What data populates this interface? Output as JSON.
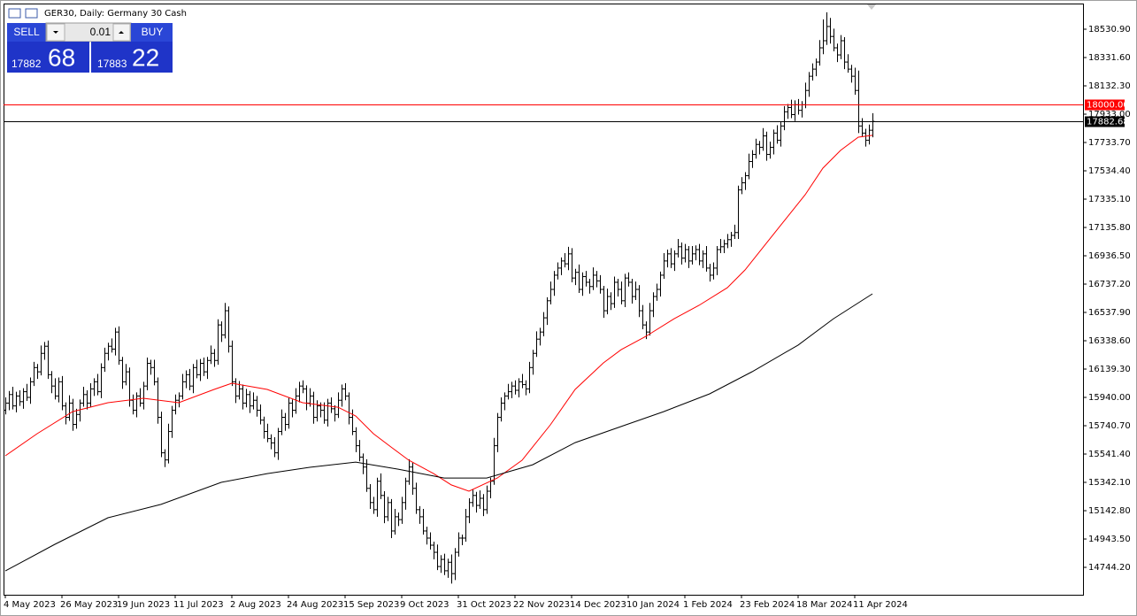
{
  "chart_data": {
    "type": "ohlc",
    "title": "GER30, Daily:  Germany 30 Cash",
    "color": "#000000",
    "xlim": [
      -0.5,
      304.5
    ],
    "ylim": [
      14563.7,
      18705.3
    ],
    "xticks": [
      {
        "value": 0,
        "label": "4 May 2023"
      },
      {
        "value": 16,
        "label": "26 May 2023"
      },
      {
        "value": 32,
        "label": "19 Jun 2023"
      },
      {
        "value": 48,
        "label": "11 Jul 2023"
      },
      {
        "value": 64,
        "label": "2 Aug 2023"
      },
      {
        "value": 80,
        "label": "24 Aug 2023"
      },
      {
        "value": 96,
        "label": "15 Sep 2023"
      },
      {
        "value": 112,
        "label": "9 Oct 2023"
      },
      {
        "value": 128,
        "label": "31 Oct 2023"
      },
      {
        "value": 144,
        "label": "22 Nov 2023"
      },
      {
        "value": 160,
        "label": "14 Dec 2023"
      },
      {
        "value": 176,
        "label": "10 Jan 2024"
      },
      {
        "value": 192,
        "label": "1 Feb 2024"
      },
      {
        "value": 208,
        "label": "23 Feb 2024"
      },
      {
        "value": 224,
        "label": "18 Mar 2024"
      },
      {
        "value": 240,
        "label": "11 Apr 2024"
      }
    ],
    "yticks": [
      {
        "value": 18530.9,
        "label": "18530.90"
      },
      {
        "value": 18331.6,
        "label": "18331.60"
      },
      {
        "value": 18132.3,
        "label": "18132.30"
      },
      {
        "value": 17933,
        "label": "17933.00"
      },
      {
        "value": 17733.7,
        "label": "17733.70"
      },
      {
        "value": 17534.4,
        "label": "17534.40"
      },
      {
        "value": 17335.1,
        "label": "17335.10"
      },
      {
        "value": 17135.8,
        "label": "17135.80"
      },
      {
        "value": 16936.5,
        "label": "16936.50"
      },
      {
        "value": 16737.2,
        "label": "16737.20"
      },
      {
        "value": 16537.9,
        "label": "16537.90"
      },
      {
        "value": 16338.6,
        "label": "16338.60"
      },
      {
        "value": 16139.3,
        "label": "16139.30"
      },
      {
        "value": 15940,
        "label": "15940.00"
      },
      {
        "value": 15740.7,
        "label": "15740.70"
      },
      {
        "value": 15541.4,
        "label": "15541.40"
      },
      {
        "value": 15342.1,
        "label": "15342.10"
      },
      {
        "value": 15142.8,
        "label": "15142.80"
      },
      {
        "value": 14943.5,
        "label": "14943.50"
      },
      {
        "value": 14744.2,
        "label": "14744.20"
      }
    ],
    "open": [
      15850,
      15900,
      15960,
      15880,
      15950,
      15910,
      15980,
      15940,
      16050,
      16150,
      16120,
      16250,
      16300,
      16100,
      16020,
      15950,
      16050,
      15880,
      15800,
      15900,
      15750,
      15820,
      15900,
      15960,
      15900,
      16000,
      16050,
      15980,
      16150,
      16250,
      16300,
      16280,
      16400,
      16200,
      16050,
      16120,
      15920,
      15850,
      15950,
      15900,
      16020,
      16180,
      16150,
      16050,
      15800,
      15550,
      15500,
      15700,
      15850,
      15920,
      15950,
      16050,
      16100,
      16020,
      16150,
      16100,
      16180,
      16120,
      16200,
      16250,
      16200,
      16450,
      16380,
      16550,
      16300,
      16050,
      15950,
      16000,
      15900,
      15960,
      15880,
      15920,
      15850,
      15780,
      15700,
      15650,
      15620,
      15550,
      15700,
      15800,
      15750,
      15900,
      15850,
      15950,
      16020,
      16000,
      15900,
      15950,
      15800,
      15880,
      15850,
      15780,
      15900,
      15860,
      15820,
      15920,
      16000,
      15950,
      15800,
      15700,
      15600,
      15520,
      15450,
      15300,
      15200,
      15150,
      15350,
      15250,
      15100,
      15200,
      15000,
      15100,
      15080,
      15200,
      15350,
      15450,
      15300,
      15150,
      15100,
      15000,
      14950,
      14900,
      14850,
      14750,
      14800,
      14720,
      14780,
      14700,
      14850,
      14950,
      14950,
      15100,
      15200,
      15250,
      15180,
      15230,
      15150,
      15280,
      15350,
      15600,
      15800,
      15900,
      15950,
      15980,
      16020,
      15990,
      16050,
      16030,
      16000,
      16150,
      16250,
      16350,
      16400,
      16500,
      16620,
      16700,
      16800,
      16850,
      16900,
      16880,
      16950,
      16780,
      16820,
      16700,
      16790,
      16750,
      16720,
      16800,
      16760,
      16700,
      16550,
      16650,
      16600,
      16750,
      16700,
      16620,
      16780,
      16750,
      16650,
      16700,
      16550,
      16450,
      16400,
      16550,
      16650,
      16700,
      16800,
      16900,
      16950,
      16880,
      16950,
      17000,
      16920,
      16980,
      16900,
      16950,
      16980,
      16900,
      16950,
      16850,
      16800,
      16850,
      16980,
      17000,
      17020,
      17050,
      17080,
      17100,
      17400,
      17450,
      17500,
      17600,
      17650,
      17720,
      17700,
      17780,
      17650,
      17700,
      17800,
      17750,
      17850,
      17950,
      17980,
      17930,
      18000,
      17960,
      18000,
      18100,
      18200,
      18250,
      18300,
      18400,
      18450,
      18550,
      18480,
      18400,
      18350,
      18450,
      18300,
      18250,
      18200,
      18100,
      17850,
      17800,
      17750,
      17820
    ],
    "high": [
      15940,
      15985,
      16015,
      15980,
      15990,
      16005,
      16035,
      16080,
      16190,
      16175,
      16305,
      16330,
      16340,
      16125,
      16075,
      16080,
      16090,
      15905,
      15955,
      15930,
      15860,
      15925,
      16015,
      15990,
      16040,
      16075,
      16105,
      16180,
      16290,
      16325,
      16355,
      16430,
      16440,
      16225,
      16175,
      16150,
      15960,
      15975,
      16005,
      16050,
      16220,
      16205,
      16205,
      16080,
      15840,
      15575,
      15755,
      15880,
      15960,
      15975,
      16105,
      16130,
      16140,
      16175,
      16205,
      16210,
      16220,
      16225,
      16305,
      16280,
      16490,
      16475,
      16605,
      16580,
      16340,
      16075,
      16055,
      16030,
      16000,
      15985,
      15975,
      15950,
      15890,
      15805,
      15755,
      15680,
      15660,
      15725,
      15855,
      15830,
      15940,
      15925,
      16005,
      16050,
      16060,
      16025,
      16005,
      15980,
      15920,
      15905,
      15905,
      15930,
      15940,
      15885,
      15975,
      16030,
      16040,
      15975,
      15855,
      15730,
      15640,
      15545,
      15505,
      15330,
      15240,
      15375,
      15405,
      15280,
      15240,
      15225,
      15155,
      15130,
      15240,
      15375,
      15505,
      15480,
      15340,
      15175,
      15155,
      15030,
      14990,
      14925,
      14905,
      14830,
      14840,
      14805,
      14835,
      14880,
      14990,
      14975,
      15155,
      15230,
      15290,
      15275,
      15285,
      15260,
      15320,
      15375,
      15655,
      15830,
      15940,
      15975,
      16035,
      16050,
      16060,
      16075,
      16105,
      16060,
      16190,
      16275,
      16405,
      16430,
      16540,
      16645,
      16755,
      16830,
      16890,
      16925,
      16955,
      17000,
      16990,
      16845,
      16875,
      16820,
      16830,
      16775,
      16855,
      16830,
      16800,
      16725,
      16705,
      16680,
      16790,
      16775,
      16755,
      16810,
      16820,
      16775,
      16755,
      16730,
      16590,
      16475,
      16605,
      16680,
      16740,
      16825,
      16955,
      16980,
      16990,
      16975,
      17055,
      17030,
      17020,
      17005,
      17005,
      17010,
      17020,
      16975,
      17005,
      16880,
      16890,
      17005,
      17055,
      17050,
      17090,
      17105,
      17155,
      17430,
      17490,
      17525,
      17655,
      17680,
      17760,
      17745,
      17835,
      17810,
      17740,
      17825,
      17855,
      17880,
      17990,
      18005,
      18035,
      18030,
      18040,
      18025,
      18155,
      18230,
      18290,
      18325,
      18455,
      18600,
      18650,
      18610,
      18535,
      18430,
      18490,
      18475,
      18355,
      18280,
      18260,
      18240,
      17905,
      17830,
      17860,
      17940
    ],
    "low": [
      15820,
      15850,
      15855,
      15835,
      15880,
      15860,
      15915,
      15895,
      16020,
      16070,
      16095,
      16205,
      16070,
      15970,
      15925,
      15905,
      15850,
      15750,
      15775,
      15705,
      15720,
      15770,
      15875,
      15855,
      15870,
      15950,
      15955,
      15935,
      16120,
      16200,
      16255,
      16235,
      16170,
      16000,
      16025,
      15875,
      15820,
      15800,
      15875,
      15855,
      15990,
      16100,
      16025,
      15755,
      15520,
      15450,
      15475,
      15655,
      15820,
      15870,
      15925,
      16005,
      15990,
      15970,
      16075,
      16055,
      16090,
      16070,
      16175,
      16155,
      16170,
      16330,
      16355,
      16255,
      16020,
      15900,
      15925,
      15855,
      15870,
      15830,
      15855,
      15805,
      15750,
      15650,
      15625,
      15575,
      15520,
      15500,
      15675,
      15705,
      15720,
      15800,
      15825,
      15905,
      15970,
      15850,
      15875,
      15755,
      15770,
      15800,
      15755,
      15735,
      15830,
      15770,
      15795,
      15875,
      15920,
      15750,
      15675,
      15555,
      15490,
      15400,
      15275,
      15155,
      15120,
      15100,
      15225,
      15055,
      15070,
      14950,
      14975,
      15035,
      15050,
      15150,
      15325,
      15255,
      15120,
      15050,
      14975,
      14905,
      14870,
      14800,
      14725,
      14705,
      14690,
      14670,
      14630,
      14655,
      14820,
      14900,
      14925,
      15055,
      15170,
      15130,
      15155,
      15105,
      15120,
      15230,
      15325,
      15555,
      15770,
      15850,
      15925,
      15935,
      15960,
      15940,
      16005,
      15955,
      15970,
      16100,
      16225,
      16305,
      16370,
      16450,
      16595,
      16655,
      16770,
      16800,
      16855,
      16835,
      16750,
      16730,
      16675,
      16655,
      16720,
      16670,
      16695,
      16715,
      16670,
      16500,
      16525,
      16555,
      16570,
      16650,
      16595,
      16575,
      16720,
      16600,
      16625,
      16505,
      16420,
      16350,
      16375,
      16505,
      16620,
      16650,
      16775,
      16855,
      16850,
      16830,
      16925,
      16875,
      16890,
      16850,
      16875,
      16905,
      16870,
      16850,
      16825,
      16755,
      16770,
      16800,
      16955,
      16955,
      16990,
      17000,
      17055,
      17055,
      17370,
      17400,
      17475,
      17555,
      17620,
      17650,
      17675,
      17605,
      17620,
      17650,
      17725,
      17705,
      17820,
      17900,
      17905,
      17885,
      17930,
      17910,
      17975,
      18055,
      18170,
      18200,
      18275,
      18355,
      18420,
      18430,
      18375,
      18300,
      18320,
      18250,
      18225,
      18155,
      18070,
      17800,
      17775,
      17705,
      17720,
      17770
    ],
    "close": [
      15900,
      15960,
      15880,
      15950,
      15910,
      15980,
      15940,
      16050,
      16150,
      16120,
      16250,
      16300,
      16100,
      16020,
      15950,
      16050,
      15880,
      15800,
      15900,
      15750,
      15820,
      15900,
      15960,
      15900,
      16000,
      16050,
      15980,
      16150,
      16250,
      16300,
      16280,
      16400,
      16200,
      16050,
      16120,
      15920,
      15850,
      15950,
      15900,
      16020,
      16180,
      16150,
      16050,
      15800,
      15550,
      15500,
      15700,
      15850,
      15920,
      15950,
      16050,
      16100,
      16020,
      16150,
      16100,
      16180,
      16120,
      16200,
      16250,
      16200,
      16450,
      16380,
      16550,
      16300,
      16050,
      15950,
      16000,
      15900,
      15960,
      15880,
      15920,
      15850,
      15780,
      15700,
      15650,
      15620,
      15550,
      15700,
      15800,
      15750,
      15900,
      15850,
      15950,
      16020,
      16000,
      15900,
      15950,
      15800,
      15880,
      15850,
      15780,
      15900,
      15860,
      15820,
      15920,
      16000,
      15950,
      15800,
      15700,
      15600,
      15520,
      15450,
      15300,
      15200,
      15150,
      15350,
      15250,
      15100,
      15200,
      15000,
      15100,
      15080,
      15200,
      15350,
      15450,
      15300,
      15150,
      15100,
      15000,
      14950,
      14900,
      14850,
      14750,
      14800,
      14720,
      14780,
      14700,
      14850,
      14950,
      14950,
      15100,
      15200,
      15250,
      15180,
      15230,
      15150,
      15280,
      15350,
      15600,
      15800,
      15900,
      15950,
      15980,
      16020,
      15990,
      16050,
      16030,
      16000,
      16150,
      16250,
      16350,
      16400,
      16500,
      16620,
      16700,
      16800,
      16850,
      16900,
      16880,
      16950,
      16780,
      16820,
      16700,
      16790,
      16750,
      16720,
      16800,
      16760,
      16700,
      16550,
      16650,
      16600,
      16750,
      16700,
      16620,
      16780,
      16750,
      16650,
      16700,
      16550,
      16450,
      16400,
      16550,
      16650,
      16700,
      16800,
      16900,
      16950,
      16880,
      16950,
      17000,
      16920,
      16980,
      16900,
      16950,
      16980,
      16900,
      16950,
      16850,
      16800,
      16850,
      16980,
      17000,
      17020,
      17050,
      17080,
      17100,
      17400,
      17450,
      17500,
      17600,
      17650,
      17720,
      17700,
      17780,
      17650,
      17700,
      17800,
      17750,
      17850,
      17950,
      17980,
      17930,
      18000,
      17960,
      18000,
      18100,
      18200,
      18250,
      18300,
      18400,
      18450,
      18550,
      18480,
      18400,
      18350,
      18450,
      18300,
      18250,
      18200,
      18100,
      17850,
      17800,
      17750,
      17820,
      17882.68
    ],
    "moving_averages": [
      {
        "color": "#ff0000",
        "x": [
          0,
          9,
          19,
          29,
          39,
          49,
          59,
          64,
          74,
          84,
          94,
          99,
          104,
          109,
          114,
          121,
          126,
          131,
          139,
          146,
          154,
          161,
          169,
          174,
          181,
          189,
          196,
          204,
          209,
          214,
          221,
          226,
          231,
          236,
          241,
          245
        ],
        "values": [
          15529,
          15685,
          15840,
          15903,
          15934,
          15903,
          15996,
          16040,
          15996,
          15903,
          15871,
          15809,
          15685,
          15591,
          15498,
          15404,
          15324,
          15280,
          15373,
          15498,
          15747,
          15996,
          16183,
          16276,
          16370,
          16494,
          16588,
          16712,
          16837,
          16993,
          17211,
          17366,
          17553,
          17678,
          17771,
          17784
        ]
      },
      {
        "color": "#000000",
        "x": [
          0,
          14,
          29,
          44,
          61,
          74,
          86,
          99,
          111,
          124,
          136,
          149,
          161,
          174,
          186,
          199,
          211,
          224,
          234,
          245
        ],
        "values": [
          14719,
          14906,
          15093,
          15187,
          15342,
          15404,
          15448,
          15485,
          15435,
          15373,
          15373,
          15466,
          15622,
          15735,
          15840,
          15965,
          16121,
          16308,
          16494,
          16669
        ]
      }
    ],
    "hlines": [
      {
        "value": 18000,
        "label": "18000.00",
        "color": "#ff0000"
      },
      {
        "value": 17882.68,
        "label": "17882.68",
        "color": "#000000"
      }
    ]
  },
  "trade_panel": {
    "sell": "SELL",
    "lot": "0.01",
    "buy": "BUY",
    "bid_main": "17882",
    "bid_big": "68",
    "ask_main": "17883",
    "ask_big": "22"
  }
}
